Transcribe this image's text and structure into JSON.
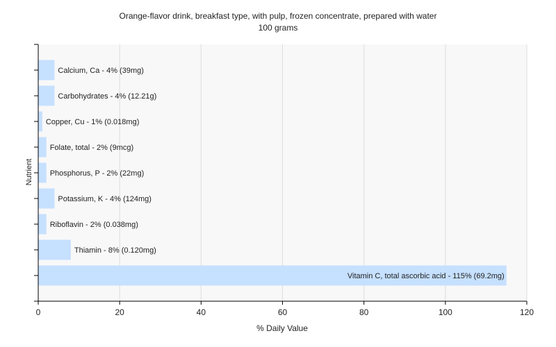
{
  "chart_data": {
    "type": "bar",
    "orientation": "horizontal",
    "title": "Orange-flavor drink, breakfast type, with pulp, frozen concentrate, prepared with water",
    "subtitle": "100 grams",
    "xlabel": "% Daily Value",
    "ylabel": "Nutrient",
    "xlim": [
      0,
      120
    ],
    "xticks": [
      0,
      20,
      40,
      60,
      80,
      100,
      120
    ],
    "grid": true,
    "bar_color": "#c6e0ff",
    "plot_background": "#f8f8f8",
    "categories": [
      "Calcium, Ca",
      "Carbohydrates",
      "Copper, Cu",
      "Folate, total",
      "Phosphorus, P",
      "Potassium, K",
      "Riboflavin",
      "Thiamin",
      "Vitamin C, total ascorbic acid"
    ],
    "values": [
      4,
      4,
      1,
      2,
      2,
      4,
      2,
      8,
      115
    ],
    "labels": [
      "Calcium, Ca - 4% (39mg)",
      "Carbohydrates - 4% (12.21g)",
      "Copper, Cu - 1% (0.018mg)",
      "Folate, total - 2% (9mcg)",
      "Phosphorus, P - 2% (22mg)",
      "Potassium, K - 4% (124mg)",
      "Riboflavin - 2% (0.038mg)",
      "Thiamin - 8% (0.120mg)",
      "Vitamin C, total ascorbic acid - 115% (69.2mg)"
    ]
  }
}
